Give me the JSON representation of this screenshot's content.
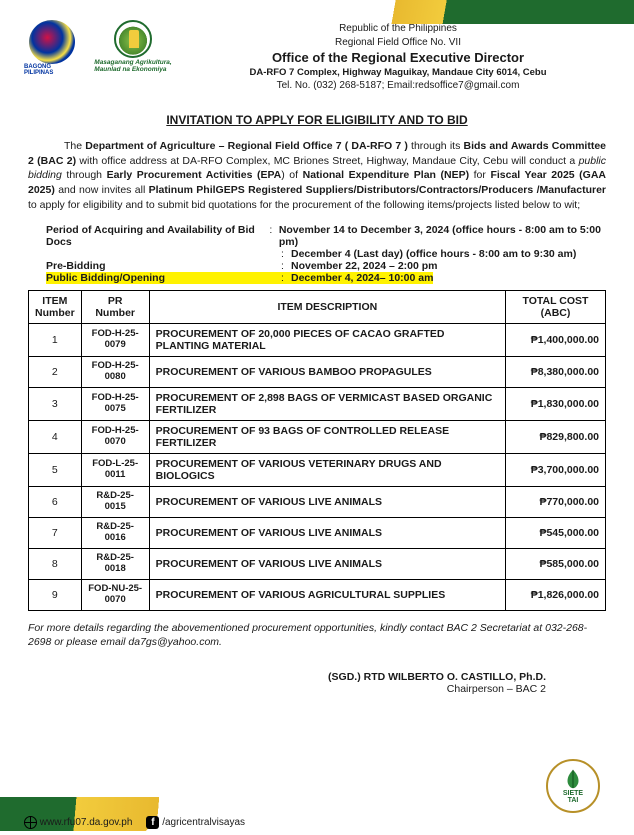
{
  "header": {
    "line1": "Republic of the Philippines",
    "line2": "Regional Field Office No. VII",
    "office": "Office of the Regional Executive Director",
    "addr": "DA-RFO 7 Complex, Highway Maguikay, Mandaue City 6014, Cebu",
    "contact": "Tel. No. (032) 268-5187; Email:redsoffice7@gmail.com",
    "logo1_label": "BAGONG PILIPINAS",
    "logo2_line1": "Masaganang Agrikultura,",
    "logo2_line2": "Maunlad na Ekonomiya"
  },
  "title": "INVITATION TO APPLY FOR ELIGIBILITY AND TO BID",
  "intro": {
    "p1a": "The ",
    "p1b": "Department of Agriculture – Regional Field Office 7 ( DA-RFO 7 )",
    "p1c": " through its ",
    "p1d": "Bids and Awards Committee 2 (BAC 2)",
    "p1e": " with office address at DA-RFO Complex, MC Briones Street, Highway, Mandaue City, Cebu will conduct a ",
    "p1f": "public bidding",
    "p1g": " through ",
    "p1h": "Early Procurement Activities (EPA",
    "p1i": ") of ",
    "p1j": "National Expenditure Plan (NEP)",
    "p1k": " for ",
    "p1l": "Fiscal Year 2025 (GAA 2025)",
    "p1m": " and now invites all ",
    "p1n": "Platinum PhilGEPS Registered Suppliers/Distributors/Contractors/Producers /Manufacturer",
    "p1o": " to apply for eligibility and to submit bid quotations for the procurement of the following items/projects listed below to wit;"
  },
  "dates": {
    "k1": "Period of Acquiring and Availability of Bid Docs",
    "v1a": "November 14 to December 3, 2024 (office hours - 8:00 am to 5:00 pm)",
    "v1b": "December 4 (Last day) (office hours - 8:00 am to 9:30 am)",
    "k2": "Pre-Bidding",
    "v2": "November 22, 2024 – 2:00 pm",
    "k3": "Public Bidding/Opening",
    "v3": "December 4, 2024– 10:00 am"
  },
  "table": {
    "headers": {
      "c1": "ITEM Number",
      "c2": "PR Number",
      "c3": "ITEM DESCRIPTION",
      "c4": "TOTAL COST (ABC)"
    },
    "rows": [
      {
        "n": "1",
        "pr": "FOD-H-25-0079",
        "desc": "PROCUREMENT OF 20,000 PIECES OF CACAO GRAFTED PLANTING MATERIAL",
        "cost": "₱1,400,000.00"
      },
      {
        "n": "2",
        "pr": "FOD-H-25-0080",
        "desc": "PROCUREMENT OF VARIOUS BAMBOO PROPAGULES",
        "cost": "₱8,380,000.00"
      },
      {
        "n": "3",
        "pr": "FOD-H-25-0075",
        "desc": "PROCUREMENT OF 2,898 BAGS OF VERMICAST BASED ORGANIC FERTILIZER",
        "cost": "₱1,830,000.00"
      },
      {
        "n": "4",
        "pr": "FOD-H-25-0070",
        "desc": "PROCUREMENT OF 93 BAGS OF CONTROLLED RELEASE FERTILIZER",
        "cost": "₱829,800.00"
      },
      {
        "n": "5",
        "pr": "FOD-L-25-0011",
        "desc": "PROCUREMENT OF VARIOUS VETERINARY DRUGS AND BIOLOGICS",
        "cost": "₱3,700,000.00"
      },
      {
        "n": "6",
        "pr": "R&D-25-0015",
        "desc": "PROCUREMENT OF VARIOUS LIVE ANIMALS",
        "cost": "₱770,000.00"
      },
      {
        "n": "7",
        "pr": "R&D-25-0016",
        "desc": "PROCUREMENT OF VARIOUS LIVE ANIMALS",
        "cost": "₱545,000.00"
      },
      {
        "n": "8",
        "pr": "R&D-25-0018",
        "desc": "PROCUREMENT OF VARIOUS LIVE ANIMALS",
        "cost": "₱585,000.00"
      },
      {
        "n": "9",
        "pr": "FOD-NU-25-0070",
        "desc": "PROCUREMENT OF VARIOUS AGRICULTURAL SUPPLIES",
        "cost": "₱1,826,000.00"
      }
    ]
  },
  "footer_note": "For more details regarding the abovementioned procurement opportunities, kindly contact BAC 2 Secretariat at 032-268-2698 or please email da7gs@yahoo.com.",
  "sig": {
    "name": "(SGD.) RTD WILBERTO O. CASTILLO, Ph.D.",
    "role": "Chairperson – BAC 2"
  },
  "seal": {
    "line1": "SIETE",
    "line2": "TAI"
  },
  "bottom": {
    "url": "www.rfu07.da.gov.ph",
    "fb": "/agricentralvisayas"
  }
}
